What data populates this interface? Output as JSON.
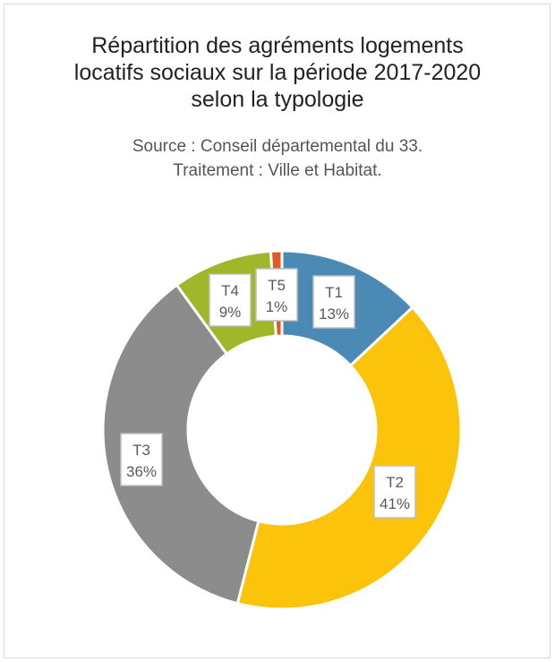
{
  "chart_data": {
    "type": "pie",
    "subtype": "donut",
    "title": [
      "Répartition des agréments logements",
      "locatifs sociaux sur la période 2017-2020",
      "selon la typologie"
    ],
    "subtitle": [
      "Source : Conseil départemental du 33.",
      "Traitement : Ville et Habitat."
    ],
    "categories": [
      "T1",
      "T2",
      "T3",
      "T4",
      "T5"
    ],
    "values": [
      13,
      41,
      36,
      9,
      1
    ],
    "value_labels": [
      "13%",
      "41%",
      "36%",
      "9%",
      "1%"
    ],
    "colors": [
      "#4a8ab5",
      "#fcc30b",
      "#8c8c8c",
      "#a0b72a",
      "#e05a2a"
    ],
    "legend": "none"
  }
}
